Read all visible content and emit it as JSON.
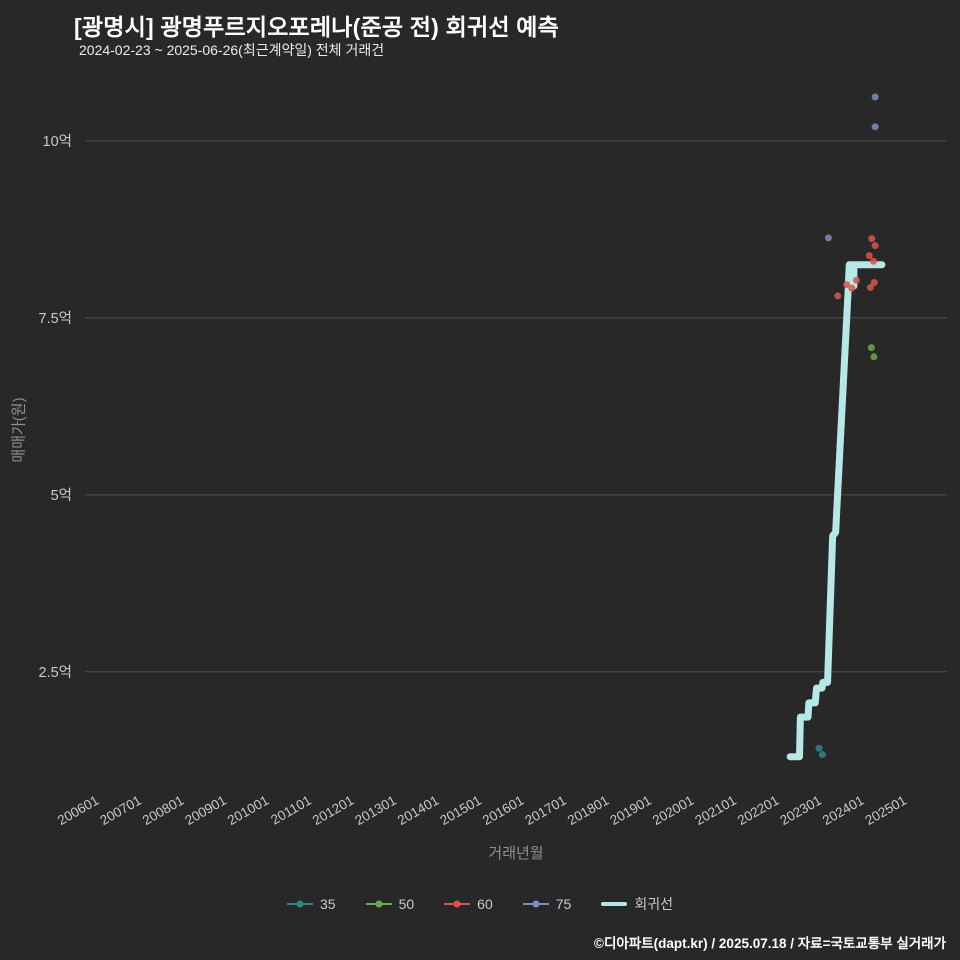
{
  "header": {
    "title": "[광명시] 광명푸르지오포레나(준공 전) 회귀선 예측",
    "subtitle": "2024-02-23 ~ 2025-06-26(최근계약일) 전체 거래건"
  },
  "footer": {
    "credit": "©디아파트(dapt.kr) / 2025.07.18 / 자료=국토교통부 실거래가"
  },
  "chart_data": {
    "type": "scatter",
    "title": "[광명시] 광명푸르지오포레나(준공 전) 회귀선 예측",
    "subtitle": "2024-02-23 ~ 2025-06-26(최근계약일) 전체 거래건",
    "xlabel": "거래년월",
    "ylabel": "매매가(원)",
    "unit": "억원",
    "legend_position": "bottom",
    "grid": "horizontal-only",
    "x_range": [
      2005.65,
      2025.93
    ],
    "y_range": [
      0.83,
      10.79
    ],
    "x_ticks": [
      "200601",
      "200701",
      "200801",
      "200901",
      "201001",
      "201101",
      "201201",
      "201301",
      "201401",
      "201501",
      "201601",
      "201701",
      "201801",
      "201901",
      "202001",
      "202101",
      "202201",
      "202301",
      "202401",
      "202501"
    ],
    "x_tick_years": [
      2006,
      2007,
      2008,
      2009,
      2010,
      2011,
      2012,
      2013,
      2014,
      2015,
      2016,
      2017,
      2018,
      2019,
      2020,
      2021,
      2022,
      2023,
      2024,
      2025
    ],
    "y_ticks": [
      {
        "label": "2.5억",
        "value": 2.5
      },
      {
        "label": "5억",
        "value": 5
      },
      {
        "label": "7.5억",
        "value": 7.5
      },
      {
        "label": "10억",
        "value": 10
      }
    ],
    "colors": {
      "background": "#282828",
      "grid": "#4d4d4d",
      "tick": "#c9c9c9",
      "axis_label": "#8f8f8f",
      "title": "#ffffff"
    },
    "series": [
      {
        "name": "35",
        "color": "#2b8784",
        "points": [
          [
            2022.92,
            1.42
          ],
          [
            2023.0,
            1.33
          ]
        ]
      },
      {
        "name": "50",
        "color": "#6aa84f",
        "points": [
          [
            2024.15,
            7.08
          ],
          [
            2024.21,
            6.95
          ]
        ]
      },
      {
        "name": "60",
        "color": "#d9534f",
        "points": [
          [
            2023.36,
            7.81
          ],
          [
            2023.57,
            7.97
          ],
          [
            2023.69,
            7.92
          ],
          [
            2023.8,
            8.03
          ],
          [
            2024.1,
            8.38
          ],
          [
            2024.16,
            8.62
          ],
          [
            2024.24,
            8.52
          ],
          [
            2024.2,
            8.3
          ],
          [
            2024.13,
            7.93
          ],
          [
            2024.22,
            8.0
          ]
        ]
      },
      {
        "name": "75",
        "color": "#7b8cbf",
        "points": [
          [
            2023.14,
            8.63
          ],
          [
            2024.24,
            10.62
          ],
          [
            2024.24,
            10.2
          ]
        ]
      }
    ],
    "regression": {
      "name": "회귀선",
      "color": "#b5e8e6",
      "points": [
        [
          2022.24,
          1.3
        ],
        [
          2022.46,
          1.3
        ],
        [
          2022.48,
          1.86
        ],
        [
          2022.66,
          1.86
        ],
        [
          2022.68,
          2.06
        ],
        [
          2022.83,
          2.06
        ],
        [
          2022.86,
          2.27
        ],
        [
          2022.99,
          2.27
        ],
        [
          2023.01,
          2.35
        ],
        [
          2023.12,
          2.35
        ],
        [
          2023.24,
          4.42
        ],
        [
          2023.31,
          4.47
        ],
        [
          2023.6,
          7.84
        ],
        [
          2023.63,
          8.25
        ],
        [
          2023.7,
          8.25
        ],
        [
          2023.7,
          7.95
        ],
        [
          2023.74,
          7.95
        ],
        [
          2023.74,
          8.25
        ],
        [
          2024.4,
          8.25
        ]
      ]
    }
  }
}
